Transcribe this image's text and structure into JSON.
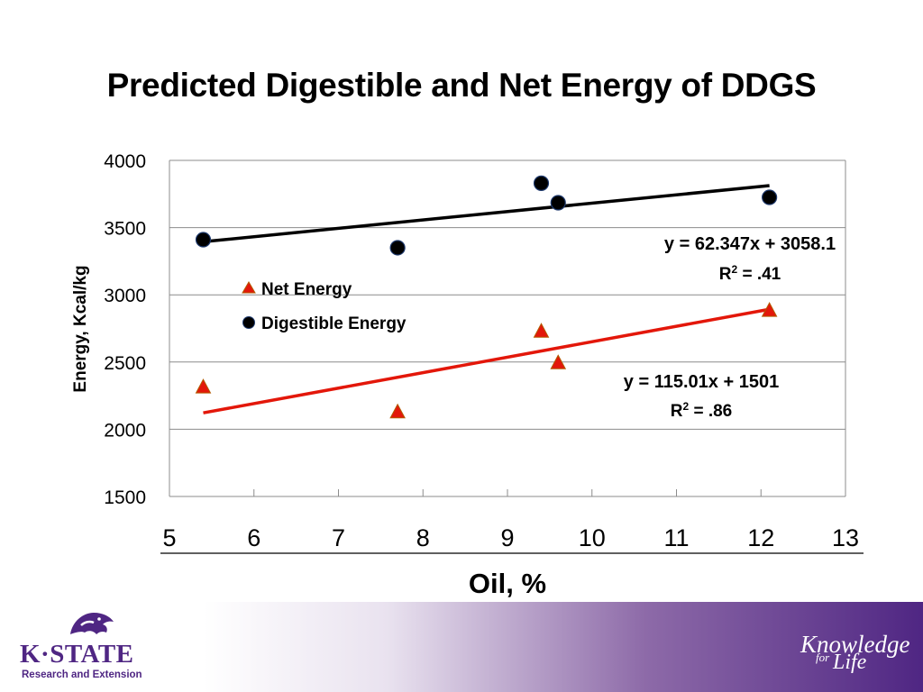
{
  "slide": {
    "title": "Predicted Digestible and Net Energy of DDGS"
  },
  "branding": {
    "logo_word": "K·STATE",
    "logo_sub": "Research and Extension",
    "tagline_1": "Knowledge",
    "tagline_2": "for",
    "tagline_3": "Life",
    "brand_color": "#4f2683"
  },
  "chart_data": {
    "type": "scatter",
    "title": "Predicted Digestible and Net Energy of DDGS",
    "xlabel": "Oil, %",
    "ylabel": "Energy, Kcal/kg",
    "xlim": [
      5,
      13
    ],
    "ylim": [
      1500,
      4000
    ],
    "x_ticks": [
      5,
      6,
      7,
      8,
      9,
      10,
      11,
      12,
      13
    ],
    "y_ticks": [
      1500,
      2000,
      2500,
      3000,
      3500,
      4000
    ],
    "grid": "horizontal",
    "legend_position": "left-center",
    "series": [
      {
        "name": "Net Energy",
        "marker": "triangle",
        "color": "#e3170a",
        "points": [
          [
            5.4,
            2310
          ],
          [
            7.7,
            2125
          ],
          [
            9.4,
            2725
          ],
          [
            9.6,
            2490
          ],
          [
            12.1,
            2880
          ]
        ],
        "trendline": {
          "slope": 115.01,
          "intercept": 1501,
          "color": "#e3170a"
        },
        "equation": "y = 115.01x + 1501",
        "r2_label": "R",
        "r2_sup": "2",
        "r2_value": " = .86"
      },
      {
        "name": "Digestible Energy",
        "marker": "circle",
        "color": "#000000",
        "points": [
          [
            5.4,
            3410
          ],
          [
            7.7,
            3350
          ],
          [
            9.4,
            3830
          ],
          [
            9.6,
            3685
          ],
          [
            12.1,
            3725
          ]
        ],
        "trendline": {
          "slope": 62.347,
          "intercept": 3058.1,
          "color": "#000000"
        },
        "equation": "y = 62.347x + 3058.1",
        "r2_label": "R",
        "r2_sup": "2",
        "r2_value": " = .41"
      }
    ]
  }
}
